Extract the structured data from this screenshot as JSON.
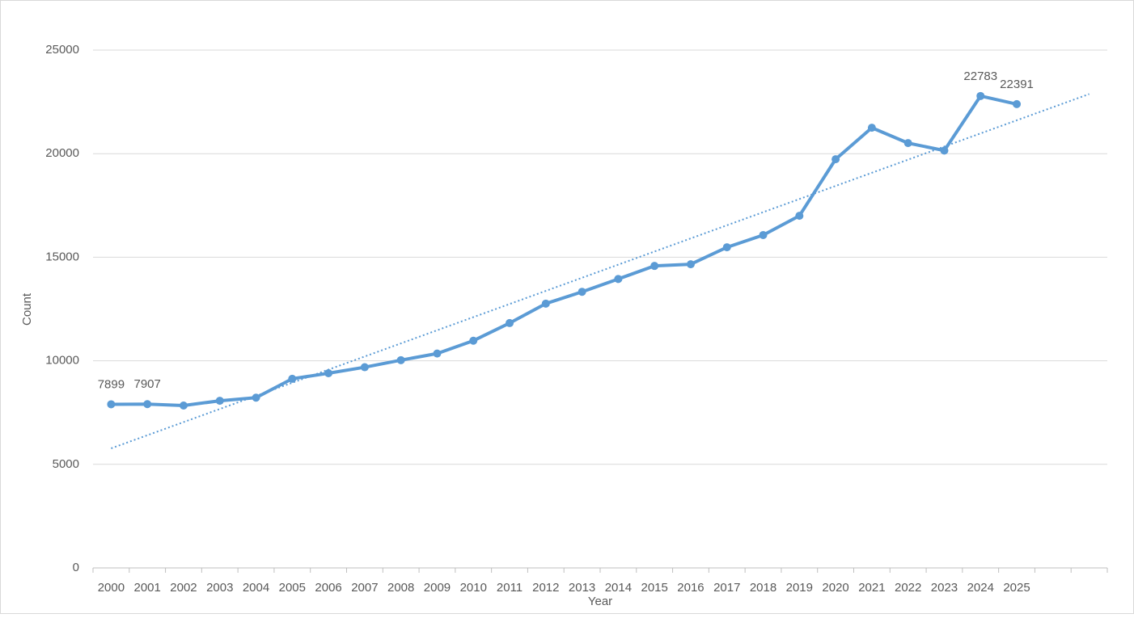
{
  "chart_data": {
    "type": "line",
    "x_label": "Year",
    "y_label": "Count",
    "categories": [
      "2000",
      "2001",
      "2002",
      "2003",
      "2004",
      "2005",
      "2006",
      "2007",
      "2008",
      "2009",
      "2010",
      "2011",
      "2012",
      "2013",
      "2014",
      "2015",
      "2016",
      "2017",
      "2018",
      "2019",
      "2020",
      "2021",
      "2022",
      "2023",
      "2024",
      "2025",
      null,
      null
    ],
    "series": [
      {
        "color": "#5b9bd5",
        "values": [
          7899,
          7907,
          7840,
          8070,
          8220,
          9130,
          9400,
          9690,
          10030,
          10350,
          10970,
          11820,
          12760,
          13330,
          13950,
          14580,
          14660,
          15480,
          16070,
          17000,
          19730,
          21250,
          20510,
          20150,
          22783,
          22391,
          null,
          null
        ]
      }
    ],
    "data_label_indices": [
      0,
      1,
      24,
      25
    ],
    "trendline": "linear",
    "ylim": [
      0,
      25000
    ],
    "yticks": [
      0,
      5000,
      10000,
      15000,
      20000,
      25000
    ],
    "grid": true
  }
}
